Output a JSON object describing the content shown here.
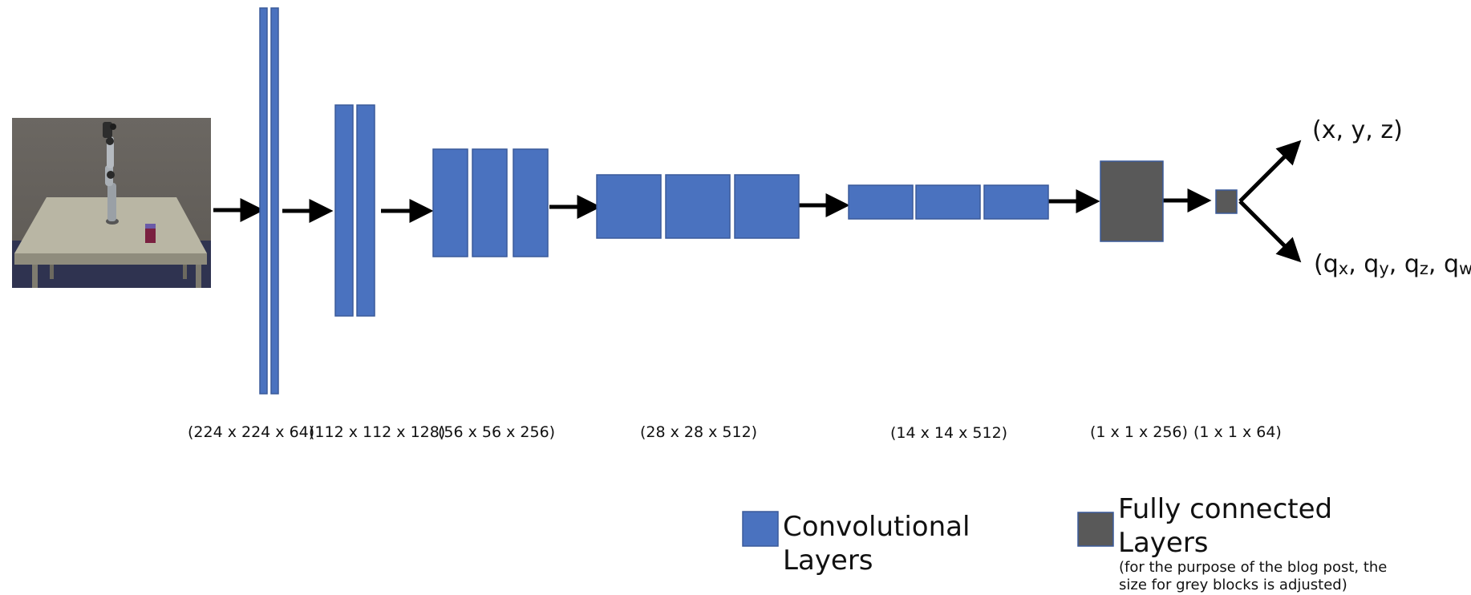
{
  "input_image": {
    "description_icon": "robot-arm-scene"
  },
  "layer_dims": [
    "(224 x 224 x 64)",
    "(112 x 112 x 128)",
    "(56 x 56 x 256)",
    "(28 x 28 x 512)",
    "(14 x 14 x 512)",
    "(1 x 1 x 256)",
    "(1 x 1 x 64)"
  ],
  "outputs": {
    "position": "(x, y, z)",
    "orientation": {
      "open": "(",
      "q": "q",
      "x": "x",
      "y": "y",
      "z": "z",
      "w": "w",
      "sep": ", ",
      "close": ")"
    }
  },
  "legend": {
    "conv_label": "Convolutional Layers",
    "fc_label": "Fully connected Layers",
    "fc_note": "(for the purpose of the blog post, the size for grey blocks is adjusted)"
  },
  "colors": {
    "conv": "#4a72bf",
    "fc": "#595959"
  }
}
